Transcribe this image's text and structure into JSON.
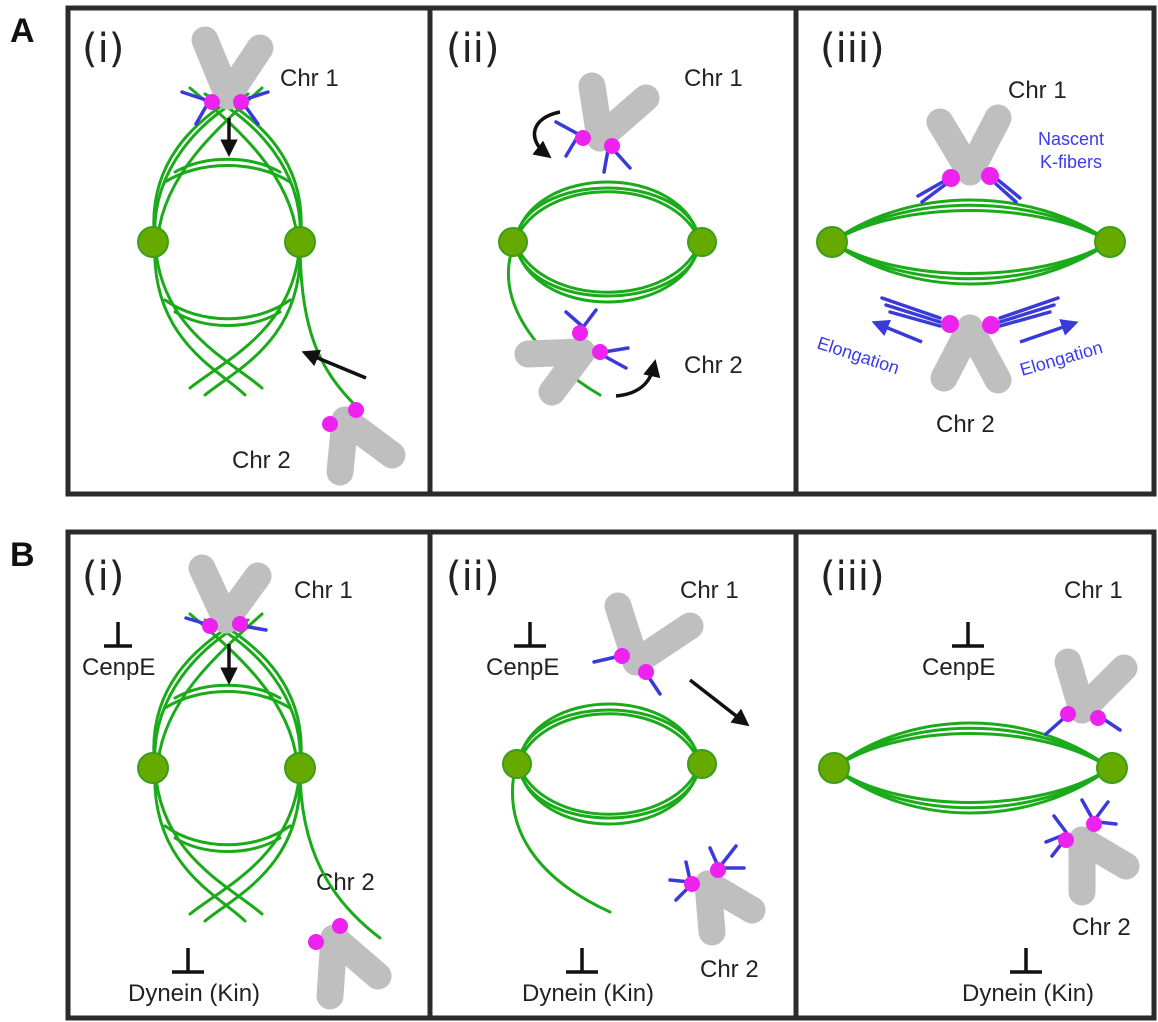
{
  "section_a": {
    "letter": "A",
    "panel_i": {
      "numeral": "(i)",
      "chr1": "Chr 1",
      "chr2": "Chr 2"
    },
    "panel_ii": {
      "numeral": "(ii)",
      "chr1": "Chr 1",
      "chr2": "Chr 2"
    },
    "panel_iii": {
      "numeral": "(iii)",
      "chr1": "Chr 1",
      "chr2": "Chr 2",
      "nascent_line1": "Nascent",
      "nascent_line2": "K-fibers",
      "elongation_left": "Elongation",
      "elongation_right": "Elongation"
    }
  },
  "section_b": {
    "letter": "B",
    "panel_i": {
      "numeral": "(i)",
      "chr1": "Chr 1",
      "chr2": "Chr 2",
      "inhibit_top": "CenpE",
      "inhibit_bottom": "Dynein (Kin)"
    },
    "panel_ii": {
      "numeral": "(ii)",
      "chr1": "Chr 1",
      "chr2": "Chr 2",
      "inhibit_top": "CenpE",
      "inhibit_bottom": "Dynein (Kin)"
    },
    "panel_iii": {
      "numeral": "(iii)",
      "chr1": "Chr 1",
      "chr2": "Chr 2",
      "inhibit_top": "CenpE",
      "inhibit_bottom": "Dynein (Kin)"
    }
  },
  "colors": {
    "microtubule": "#1aaa1a",
    "pole": "#66aa00",
    "kinetochore": "#ee22ee",
    "k_fiber": "#3a3ad8",
    "chromosome": "#bfbfbf",
    "annotation_blue": "#3a3af0"
  }
}
